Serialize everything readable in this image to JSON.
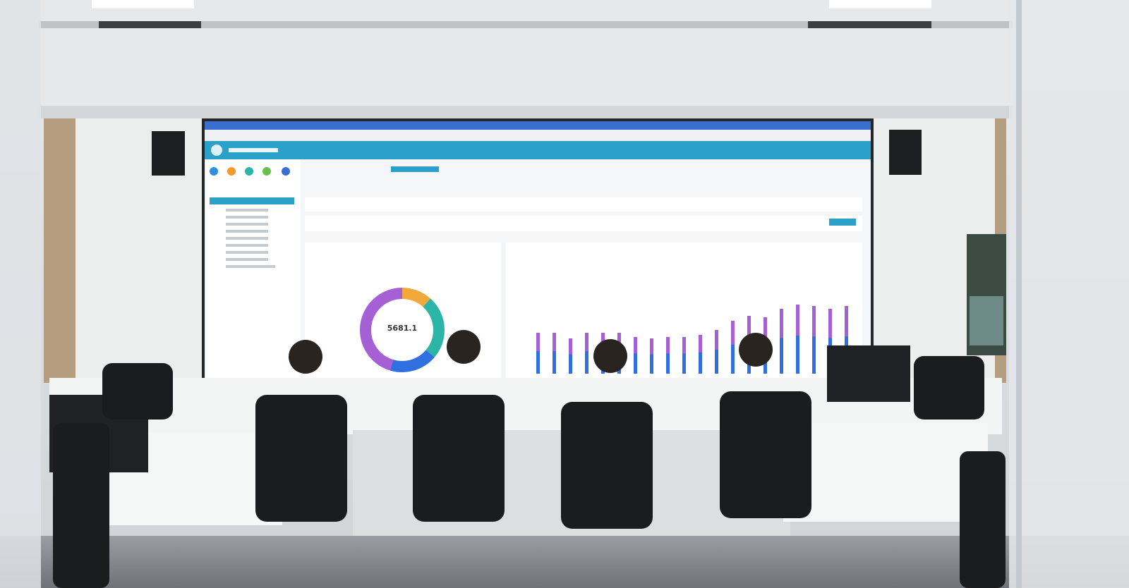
{
  "screen": {
    "donut_center_value": "5681.1"
  }
}
